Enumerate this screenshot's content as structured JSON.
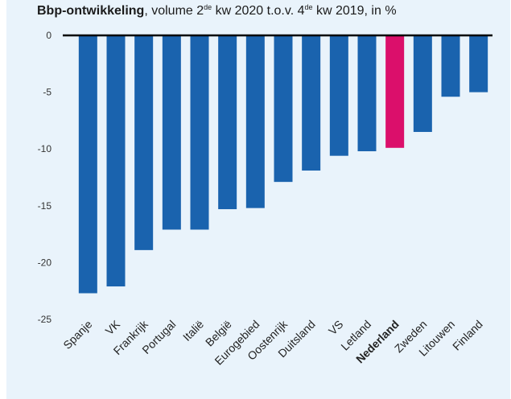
{
  "title": {
    "bold": "Bbp-ontwikkeling",
    "part1": ", volume 2",
    "sup1": "de",
    "part2": " kw 2020 t.o.v. 4",
    "sup2": "de",
    "part3": " kw 2019, in %"
  },
  "chart_data": {
    "type": "bar",
    "title": "Bbp-ontwikkeling, volume 2de kw 2020 t.o.v. 4de kw 2019, in %",
    "categories": [
      "Spanje",
      "VK",
      "Frankrijk",
      "Portugal",
      "Italië",
      "België",
      "Eurogebied",
      "Oostenrijk",
      "Duitsland",
      "VS",
      "Letland",
      "Nederland",
      "Zweden",
      "Litouwen",
      "Finland"
    ],
    "values": [
      -22.7,
      -22.1,
      -18.9,
      -17.1,
      -17.1,
      -15.3,
      -15.2,
      -12.9,
      -11.9,
      -10.6,
      -10.2,
      -9.9,
      -8.5,
      -5.4,
      -5.0
    ],
    "highlight": "Nederland",
    "ylim": [
      -25,
      0
    ],
    "yticks": [
      0,
      -5,
      -10,
      -15,
      -20,
      -25
    ],
    "colors": {
      "bar": "#1a63ae",
      "highlight": "#db0f6b",
      "zero_line": "#000000"
    }
  }
}
